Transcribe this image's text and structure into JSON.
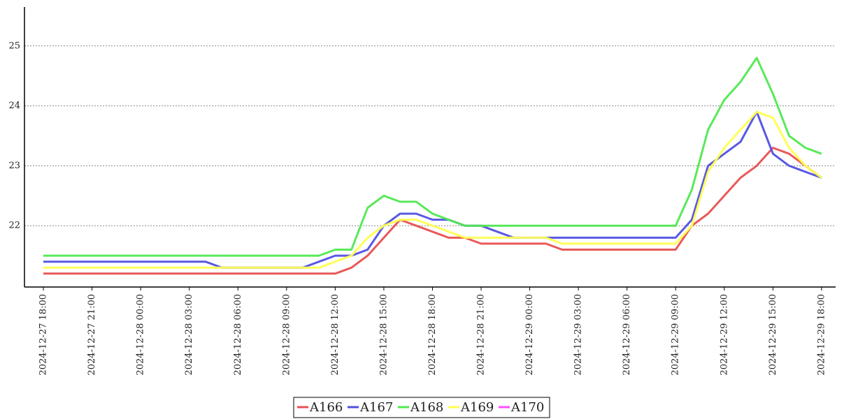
{
  "chart_data": {
    "type": "line",
    "x": [
      "2024-12-27 18:00",
      "2024-12-27 19:00",
      "2024-12-27 20:00",
      "2024-12-27 21:00",
      "2024-12-27 22:00",
      "2024-12-27 23:00",
      "2024-12-28 00:00",
      "2024-12-28 01:00",
      "2024-12-28 02:00",
      "2024-12-28 03:00",
      "2024-12-28 04:00",
      "2024-12-28 05:00",
      "2024-12-28 06:00",
      "2024-12-28 07:00",
      "2024-12-28 08:00",
      "2024-12-28 09:00",
      "2024-12-28 10:00",
      "2024-12-28 11:00",
      "2024-12-28 12:00",
      "2024-12-28 13:00",
      "2024-12-28 14:00",
      "2024-12-28 15:00",
      "2024-12-28 16:00",
      "2024-12-28 17:00",
      "2024-12-28 18:00",
      "2024-12-28 19:00",
      "2024-12-28 20:00",
      "2024-12-28 21:00",
      "2024-12-28 22:00",
      "2024-12-28 23:00",
      "2024-12-29 00:00",
      "2024-12-29 01:00",
      "2024-12-29 02:00",
      "2024-12-29 03:00",
      "2024-12-29 04:00",
      "2024-12-29 05:00",
      "2024-12-29 06:00",
      "2024-12-29 07:00",
      "2024-12-29 08:00",
      "2024-12-29 09:00",
      "2024-12-29 10:00",
      "2024-12-29 11:00",
      "2024-12-29 12:00",
      "2024-12-29 13:00",
      "2024-12-29 14:00",
      "2024-12-29 15:00",
      "2024-12-29 16:00",
      "2024-12-29 17:00",
      "2024-12-29 18:00"
    ],
    "series": [
      {
        "name": "A166",
        "color": "#e85050",
        "values": [
          21.2,
          21.2,
          21.2,
          21.2,
          21.2,
          21.2,
          21.2,
          21.2,
          21.2,
          21.2,
          21.2,
          21.2,
          21.2,
          21.2,
          21.2,
          21.2,
          21.2,
          21.2,
          21.2,
          21.3,
          21.5,
          21.8,
          22.1,
          22.0,
          21.9,
          21.8,
          21.8,
          21.7,
          21.7,
          21.7,
          21.7,
          21.7,
          21.6,
          21.6,
          21.6,
          21.6,
          21.6,
          21.6,
          21.6,
          21.6,
          22.0,
          22.2,
          22.5,
          22.8,
          23.0,
          23.3,
          23.2,
          23.0,
          22.8
        ]
      },
      {
        "name": "A167",
        "color": "#5050e0",
        "values": [
          21.4,
          21.4,
          21.4,
          21.4,
          21.4,
          21.4,
          21.4,
          21.4,
          21.4,
          21.4,
          21.4,
          21.3,
          21.3,
          21.3,
          21.3,
          21.3,
          21.3,
          21.4,
          21.5,
          21.5,
          21.6,
          22.0,
          22.2,
          22.2,
          22.1,
          22.1,
          22.0,
          22.0,
          21.9,
          21.8,
          21.8,
          21.8,
          21.8,
          21.8,
          21.8,
          21.8,
          21.8,
          21.8,
          21.8,
          21.8,
          22.1,
          23.0,
          23.2,
          23.4,
          23.9,
          23.2,
          23.0,
          22.9,
          22.8
        ]
      },
      {
        "name": "A168",
        "color": "#50e850",
        "values": [
          21.5,
          21.5,
          21.5,
          21.5,
          21.5,
          21.5,
          21.5,
          21.5,
          21.5,
          21.5,
          21.5,
          21.5,
          21.5,
          21.5,
          21.5,
          21.5,
          21.5,
          21.5,
          21.6,
          21.6,
          22.3,
          22.5,
          22.4,
          22.4,
          22.2,
          22.1,
          22.0,
          22.0,
          22.0,
          22.0,
          22.0,
          22.0,
          22.0,
          22.0,
          22.0,
          22.0,
          22.0,
          22.0,
          22.0,
          22.0,
          22.6,
          23.6,
          24.1,
          24.4,
          24.8,
          24.2,
          23.5,
          23.3,
          23.2
        ]
      },
      {
        "name": "A169",
        "color": "#ffff50",
        "values": [
          21.3,
          21.3,
          21.3,
          21.3,
          21.3,
          21.3,
          21.3,
          21.3,
          21.3,
          21.3,
          21.3,
          21.3,
          21.3,
          21.3,
          21.3,
          21.3,
          21.3,
          21.3,
          21.4,
          21.5,
          21.8,
          22.0,
          22.1,
          22.1,
          22.0,
          21.9,
          21.8,
          21.8,
          21.8,
          21.8,
          21.8,
          21.8,
          21.7,
          21.7,
          21.7,
          21.7,
          21.7,
          21.7,
          21.7,
          21.7,
          22.0,
          22.9,
          23.3,
          23.6,
          23.9,
          23.8,
          23.3,
          23.0,
          22.8
        ]
      },
      {
        "name": "A170",
        "color": "#ff50ff",
        "values": [
          null,
          null,
          null,
          null,
          null,
          null,
          null,
          null,
          null,
          null,
          null,
          null,
          null,
          null,
          null,
          null,
          null,
          null,
          null,
          null,
          null,
          null,
          null,
          null,
          null,
          null,
          null,
          null,
          null,
          null,
          null,
          null,
          null,
          null,
          null,
          null,
          null,
          null,
          null,
          null,
          null,
          null,
          null,
          null,
          null,
          null,
          null,
          null,
          null
        ]
      }
    ],
    "xlim": [
      "2024-12-27 16:50",
      "2024-12-29 18:52"
    ],
    "xticks": [
      "2024-12-27 18:00",
      "2024-12-27 21:00",
      "2024-12-28 00:00",
      "2024-12-28 03:00",
      "2024-12-28 06:00",
      "2024-12-28 09:00",
      "2024-12-28 12:00",
      "2024-12-28 15:00",
      "2024-12-28 18:00",
      "2024-12-28 21:00",
      "2024-12-29 00:00",
      "2024-12-29 03:00",
      "2024-12-29 06:00",
      "2024-12-29 09:00",
      "2024-12-29 12:00",
      "2024-12-29 15:00",
      "2024-12-29 18:00"
    ],
    "ylim": [
      21,
      25.65
    ],
    "yticks": [
      22,
      23,
      24,
      25
    ],
    "grid": true,
    "legend": "bottom"
  }
}
